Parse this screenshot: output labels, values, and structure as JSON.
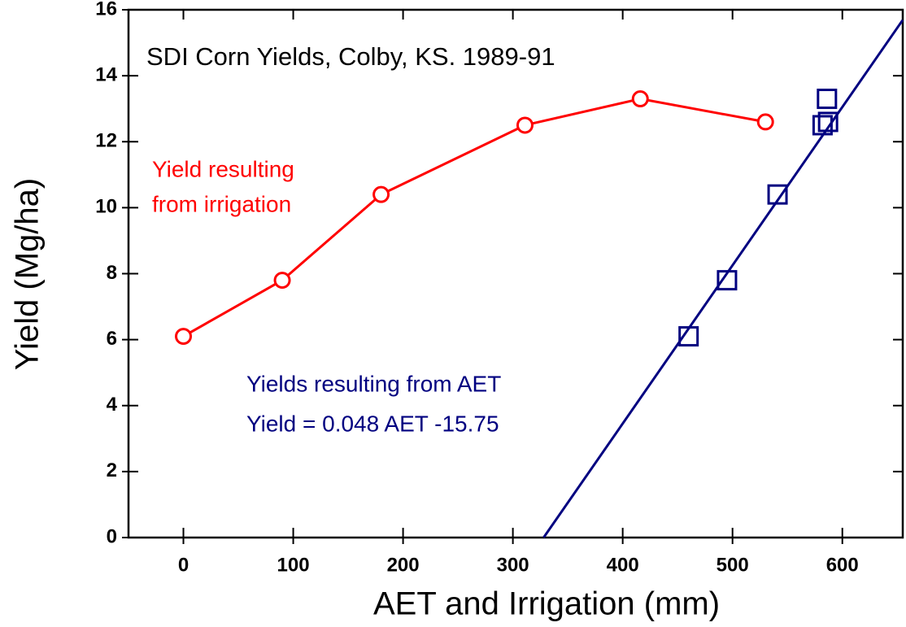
{
  "chart_data": {
    "type": "line",
    "title": "SDI Corn Yields, Colby, KS.  1989-91",
    "x_label": "AET and Irrigation (mm)",
    "y_label": "Yield (Mg/ha)",
    "annotations": [
      "Yield resulting",
      "from irrigation",
      "Yields resulting from AET",
      "Yield = 0.048 AET -15.75"
    ],
    "xlim": [
      -50,
      655
    ],
    "ylim": [
      0,
      16
    ],
    "xticks": [
      0,
      100,
      200,
      300,
      400,
      500,
      600
    ],
    "yticks": [
      0,
      2,
      4,
      6,
      8,
      10,
      12,
      14,
      16
    ],
    "series": [
      {
        "name": "Yield resulting from irrigation",
        "color": "#ff0000",
        "marker": "circle",
        "x": [
          0,
          90,
          180,
          311,
          416,
          530
        ],
        "values": [
          6.1,
          7.8,
          10.4,
          12.5,
          13.3,
          12.6
        ]
      },
      {
        "name": "Yields resulting from AET",
        "color": "#000080",
        "marker": "square",
        "connect": false,
        "x": [
          460,
          495,
          541,
          582,
          586,
          587
        ],
        "values": [
          6.1,
          7.8,
          10.4,
          12.5,
          13.3,
          12.6
        ]
      },
      {
        "name": "Yield = 0.048 AET -15.75",
        "color": "#000080",
        "marker": "none",
        "x": [
          328,
          655
        ],
        "values": [
          0,
          15.69
        ]
      }
    ]
  }
}
